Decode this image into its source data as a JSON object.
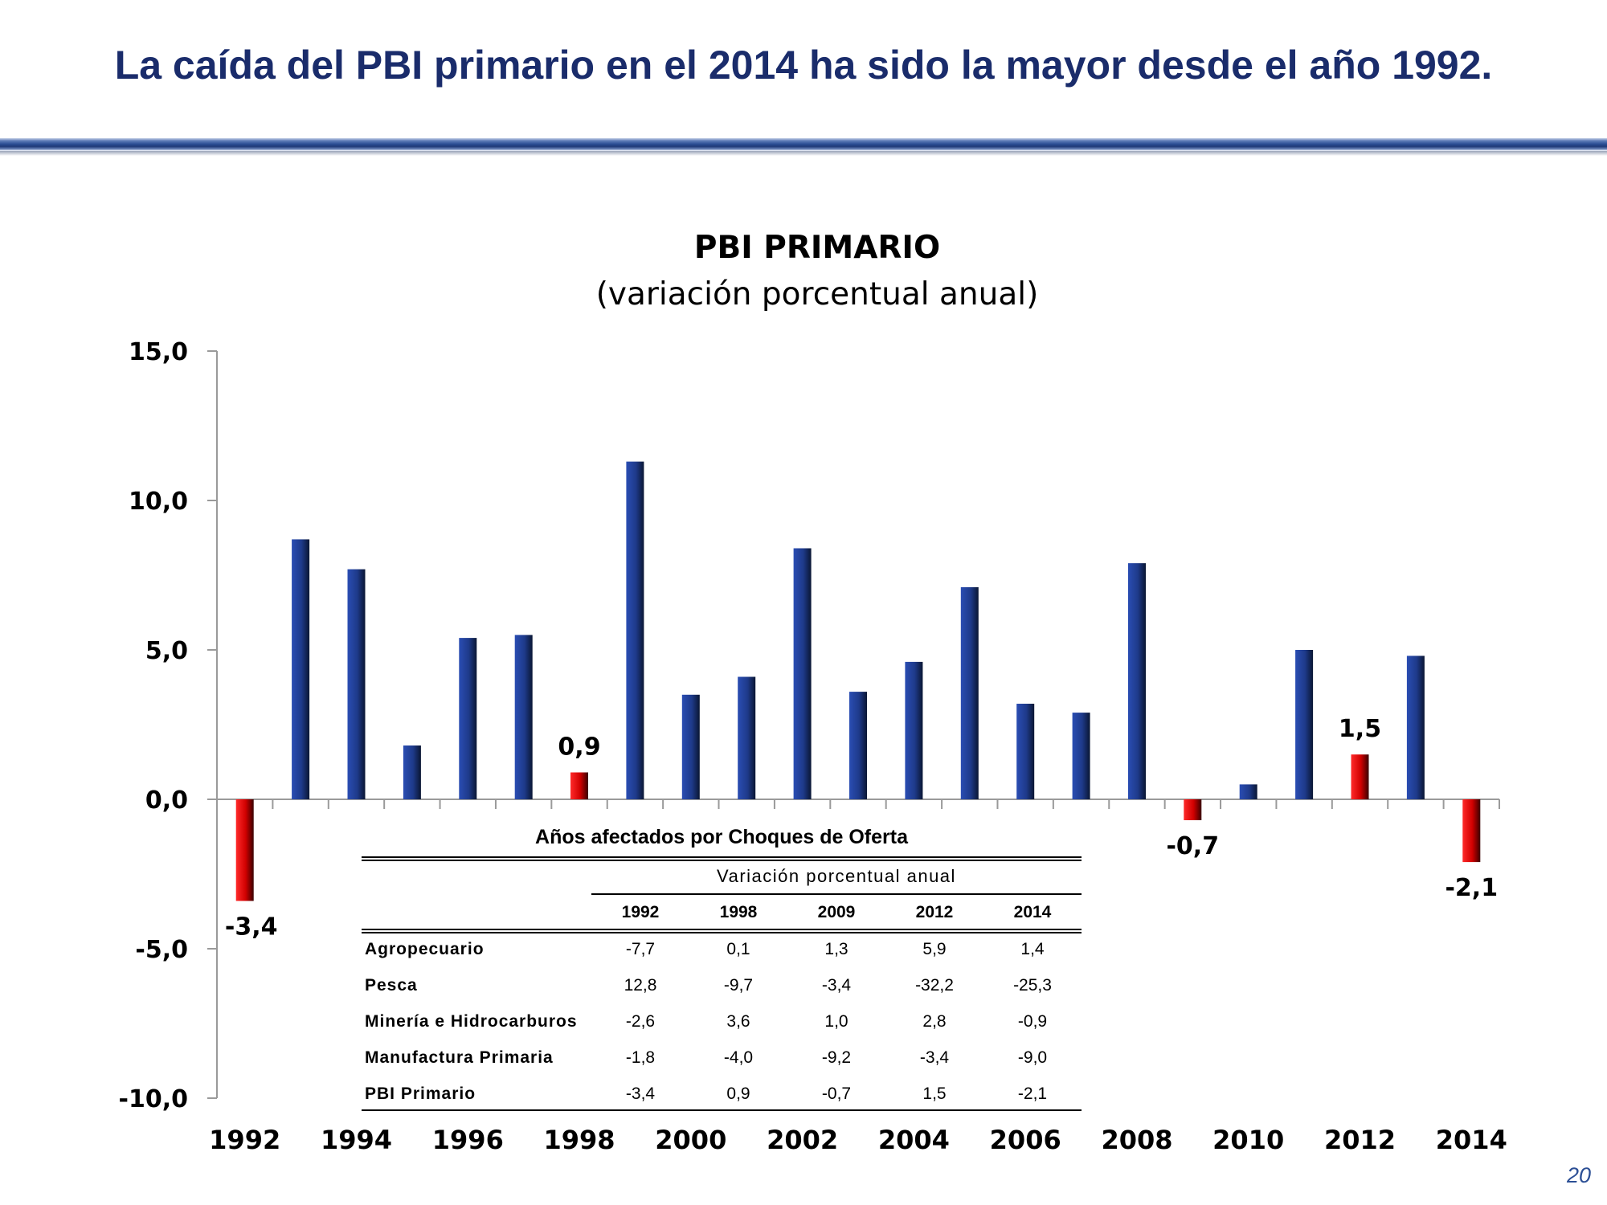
{
  "slide": {
    "headline": "La caída del PBI primario en el 2014 ha sido la mayor desde el año 1992.",
    "page_number": "20"
  },
  "chart_data": {
    "type": "bar",
    "title": "PBI PRIMARIO",
    "subtitle": "(variación porcentual anual)",
    "x": [
      1992,
      1993,
      1994,
      1995,
      1996,
      1997,
      1998,
      1999,
      2000,
      2001,
      2002,
      2003,
      2004,
      2005,
      2006,
      2007,
      2008,
      2009,
      2010,
      2011,
      2012,
      2013,
      2014
    ],
    "values": [
      -3.4,
      8.7,
      7.7,
      1.8,
      5.4,
      5.5,
      0.9,
      11.3,
      3.5,
      4.1,
      8.4,
      3.6,
      4.6,
      7.1,
      3.2,
      2.9,
      7.9,
      -0.7,
      0.5,
      5.0,
      1.5,
      4.8,
      -2.1
    ],
    "highlight_years": [
      1992,
      1998,
      2009,
      2012,
      2014
    ],
    "data_labels": {
      "1992": "-3,4",
      "1998": "0,9",
      "2009": "-0,7",
      "2012": "1,5",
      "2014": "-2,1"
    },
    "x_tick_labels": [
      "1992",
      "1994",
      "1996",
      "1998",
      "2000",
      "2002",
      "2004",
      "2006",
      "2008",
      "2010",
      "2012",
      "2014"
    ],
    "y_tick_labels": [
      "15,0",
      "10,0",
      "5,0",
      "0,0",
      "-5,0",
      "-10,0"
    ],
    "ylim": [
      -10,
      15
    ],
    "colors": {
      "normal": "#1e3a8a",
      "highlight": "#e00000"
    },
    "grid": false,
    "legend": "none"
  },
  "table": {
    "caption": "Años afectados por Choques de Oferta",
    "subheader": "Variación porcentual anual",
    "years": [
      "1992",
      "1998",
      "2009",
      "2012",
      "2014"
    ],
    "rows": [
      {
        "label": "Agropecuario",
        "values": [
          "-7,7",
          "0,1",
          "1,3",
          "5,9",
          "1,4"
        ]
      },
      {
        "label": "Pesca",
        "values": [
          "12,8",
          "-9,7",
          "-3,4",
          "-32,2",
          "-25,3"
        ]
      },
      {
        "label": "Minería e Hidrocarburos",
        "values": [
          "-2,6",
          "3,6",
          "1,0",
          "2,8",
          "-0,9"
        ]
      },
      {
        "label": "Manufactura Primaria",
        "values": [
          "-1,8",
          "-4,0",
          "-9,2",
          "-3,4",
          "-9,0"
        ]
      },
      {
        "label": "PBI Primario",
        "values": [
          "-3,4",
          "0,9",
          "-0,7",
          "1,5",
          "-2,1"
        ]
      }
    ]
  }
}
